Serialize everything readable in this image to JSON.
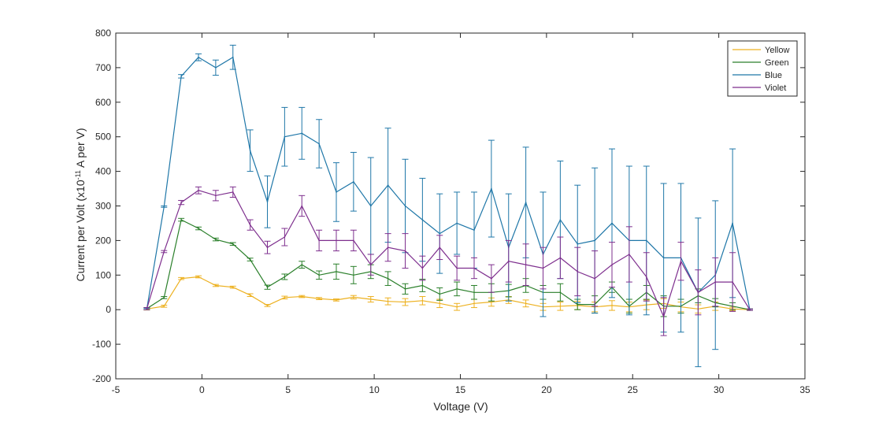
{
  "chart_data": {
    "type": "line",
    "xlabel": "Voltage (V)",
    "ylabel_main": "Current per Volt (x10",
    "ylabel_sup": "-11",
    "ylabel_tail": "A per V)",
    "xlim": [
      -5,
      35
    ],
    "ylim": [
      -200,
      800
    ],
    "xticks": [
      -5,
      0,
      5,
      10,
      15,
      20,
      25,
      30,
      35
    ],
    "yticks": [
      -200,
      -100,
      0,
      100,
      200,
      300,
      400,
      500,
      600,
      700,
      800
    ],
    "xtick_labels": [
      "-5",
      "0",
      "5",
      "10",
      "15",
      "20",
      "25",
      "30",
      "35"
    ],
    "ytick_labels": [
      "-200",
      "-100",
      "0",
      "100",
      "200",
      "300",
      "400",
      "500",
      "600",
      "700",
      "800"
    ],
    "grid": false,
    "legend_position": "top-right",
    "x": [
      -3.2,
      -2.2,
      -1.2,
      -0.2,
      0.8,
      1.8,
      2.8,
      3.8,
      4.8,
      5.8,
      6.8,
      7.8,
      8.8,
      9.8,
      10.8,
      11.8,
      12.8,
      13.8,
      14.8,
      15.8,
      16.8,
      17.8,
      18.8,
      19.8,
      20.8,
      21.8,
      22.8,
      23.8,
      24.8,
      25.8,
      26.8,
      27.8,
      28.8,
      29.8,
      30.8,
      31.8
    ],
    "series": [
      {
        "name": "Yellow",
        "color": "#EDB120",
        "values": [
          2,
          10,
          90,
          95,
          70,
          65,
          42,
          12,
          35,
          38,
          32,
          28,
          36,
          30,
          24,
          22,
          26,
          18,
          8,
          18,
          22,
          28,
          18,
          8,
          10,
          12,
          8,
          12,
          8,
          14,
          18,
          8,
          2,
          10,
          2,
          0
        ],
        "errors": [
          3,
          3,
          3,
          3,
          3,
          3,
          4,
          3,
          4,
          3,
          3,
          3,
          5,
          8,
          10,
          10,
          12,
          12,
          10,
          12,
          12,
          10,
          10,
          10,
          12,
          12,
          14,
          14,
          14,
          14,
          14,
          14,
          12,
          12,
          5,
          2
        ]
      },
      {
        "name": "Green",
        "color": "#2A7F2A",
        "values": [
          3,
          35,
          260,
          235,
          203,
          190,
          145,
          65,
          95,
          130,
          100,
          110,
          100,
          110,
          90,
          60,
          70,
          45,
          60,
          50,
          50,
          55,
          70,
          50,
          50,
          15,
          15,
          65,
          10,
          50,
          10,
          10,
          40,
          20,
          10,
          0
        ],
        "errors": [
          3,
          3,
          4,
          4,
          4,
          4,
          4,
          6,
          8,
          10,
          12,
          22,
          25,
          20,
          20,
          15,
          18,
          18,
          20,
          20,
          25,
          18,
          20,
          20,
          25,
          15,
          25,
          15,
          20,
          20,
          30,
          20,
          20,
          12,
          10,
          2
        ]
      },
      {
        "name": "Blue",
        "color": "#1F77A8",
        "values": [
          2,
          298,
          675,
          730,
          700,
          730,
          460,
          312,
          500,
          510,
          480,
          340,
          370,
          300,
          360,
          300,
          260,
          220,
          250,
          230,
          350,
          180,
          310,
          160,
          260,
          190,
          200,
          250,
          200,
          200,
          150,
          150,
          50,
          100,
          250,
          0
        ],
        "errors": [
          2,
          2,
          5,
          10,
          22,
          35,
          60,
          75,
          85,
          75,
          70,
          85,
          85,
          140,
          165,
          135,
          120,
          115,
          90,
          110,
          140,
          155,
          160,
          180,
          170,
          170,
          210,
          215,
          215,
          215,
          215,
          215,
          215,
          215,
          215,
          2
        ]
      },
      {
        "name": "Violet",
        "color": "#7E2F8E",
        "values": [
          3,
          168,
          310,
          345,
          330,
          340,
          245,
          180,
          210,
          300,
          200,
          200,
          200,
          130,
          180,
          170,
          120,
          180,
          120,
          120,
          90,
          140,
          130,
          120,
          150,
          110,
          90,
          130,
          160,
          95,
          -20,
          140,
          50,
          80,
          80,
          0
        ],
        "errors": [
          3,
          3,
          6,
          10,
          15,
          15,
          15,
          18,
          25,
          30,
          30,
          30,
          30,
          30,
          40,
          50,
          35,
          35,
          35,
          30,
          40,
          60,
          60,
          60,
          60,
          70,
          80,
          65,
          80,
          70,
          55,
          55,
          65,
          70,
          85,
          2
        ]
      }
    ]
  }
}
